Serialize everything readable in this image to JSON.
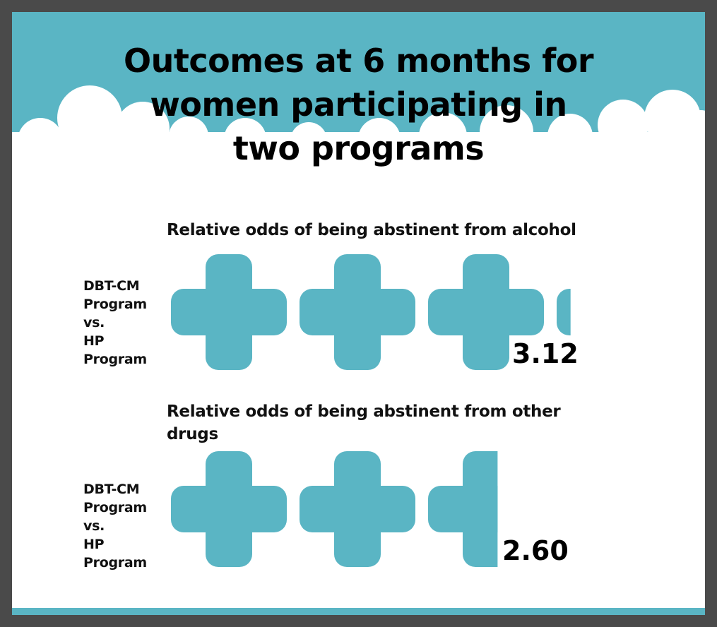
{
  "title": "Outcomes at 6 months for\nwomen participating in\ntwo programs",
  "colors": {
    "accent": "#5ab5c4",
    "background": "#ffffff",
    "frame": "#4a4a4a",
    "text": "#000000"
  },
  "icon": "plus-cross-icon",
  "chart_data": [
    {
      "type": "pictogram",
      "title": "Relative odds of being abstinent from alcohol",
      "category_label": [
        "DBT-CM",
        "Program",
        "vs.",
        "HP",
        "Program"
      ],
      "value": 3.12,
      "value_label": "3.12"
    },
    {
      "type": "pictogram",
      "title": "Relative odds of being abstinent from other drugs",
      "category_label": [
        "DBT-CM",
        "Program",
        "vs.",
        "HP",
        "Program"
      ],
      "value": 2.6,
      "value_label": "2.60"
    }
  ]
}
